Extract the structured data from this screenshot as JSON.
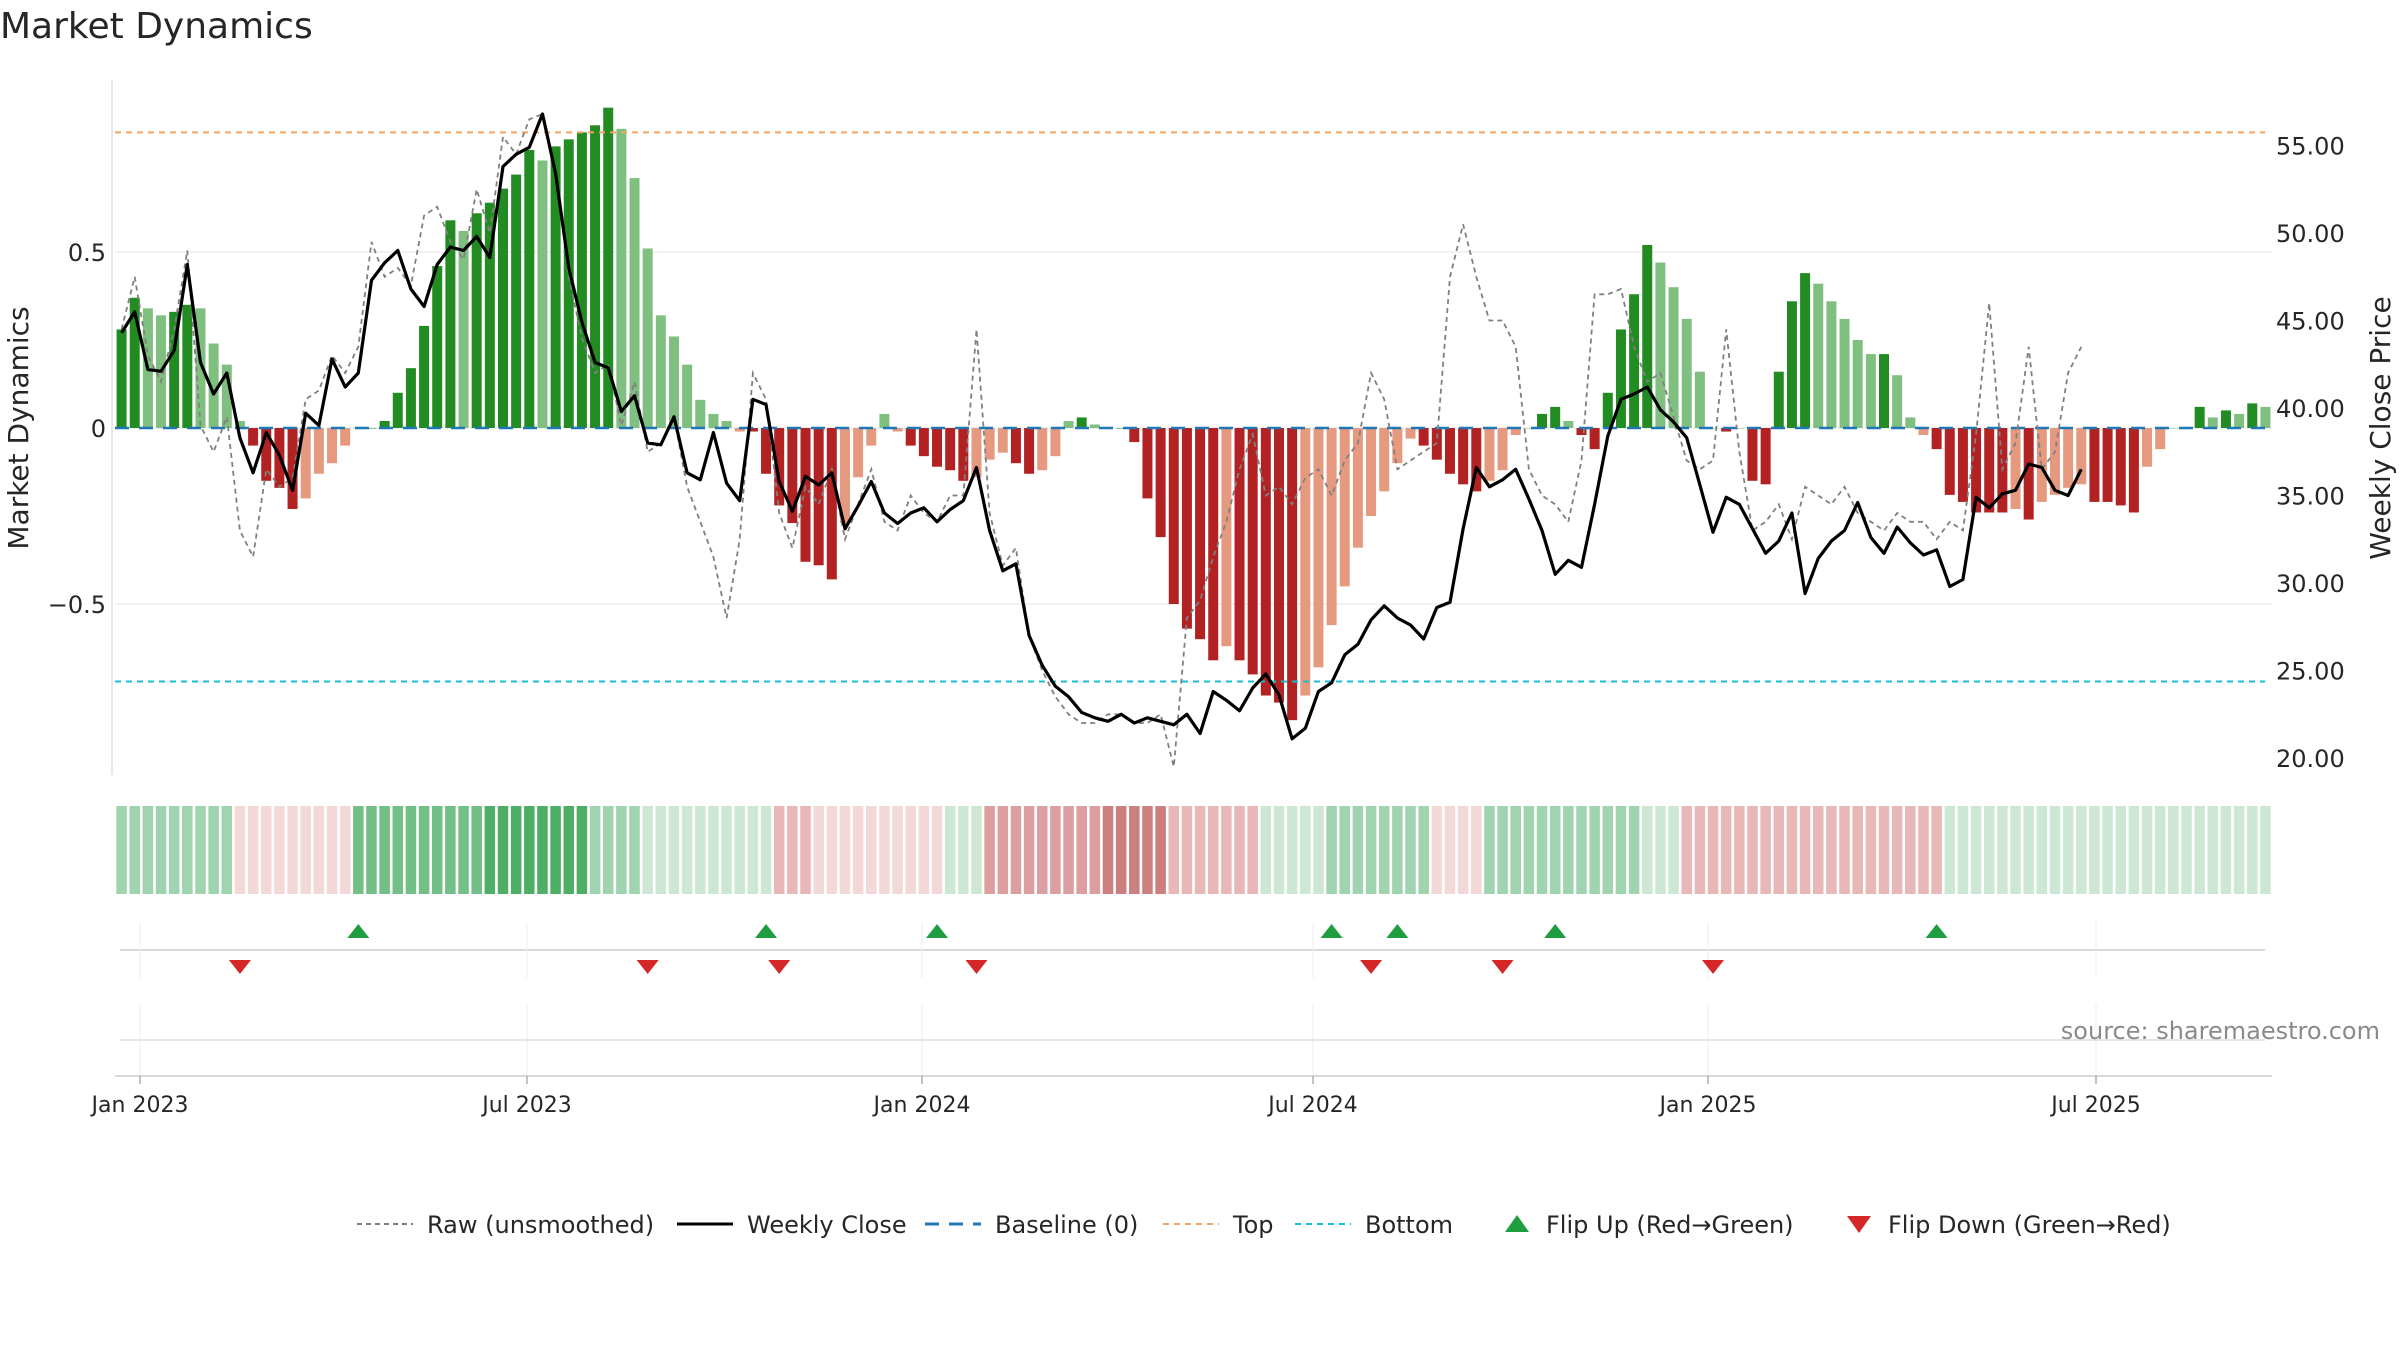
{
  "title": "Market Dynamics",
  "source": "source: sharemaestro.com",
  "chart_data": {
    "type": "bar",
    "title": "Market Dynamics",
    "ylabel_left": "Market Dynamics",
    "ylabel_right": "Weekly Close Price",
    "left_ticks": [
      0.5,
      0,
      -0.5
    ],
    "left_tick_labels": [
      "0.5",
      "0",
      "−0.5"
    ],
    "right_ticks": [
      55,
      50,
      45,
      40,
      35,
      30,
      25,
      20
    ],
    "right_tick_labels": [
      "55.00",
      "50.00",
      "45.00",
      "40.00",
      "35.00",
      "30.00",
      "25.00",
      "20.00"
    ],
    "x_ticks": [
      "Jan 2023",
      "Jul 2023",
      "Jan 2024",
      "Jul 2024",
      "Jan 2025",
      "Jul 2025"
    ],
    "top_line": 0.84,
    "bottom_line": -0.72,
    "baseline": 0,
    "colors": {
      "green_strong": "#228b22",
      "green_light": "#7fbf7f",
      "red_strong": "#b22222",
      "red_light": "#e59a80",
      "close_line": "#000000",
      "raw_line": "#808080",
      "baseline": "#1f77b4",
      "top": "#f4a460",
      "bottom": "#17becf",
      "flip_up": "#1e9e3e",
      "flip_down": "#d62728"
    },
    "legend": [
      {
        "label": "Raw (unsmoothed)",
        "style": "raw"
      },
      {
        "label": "Weekly Close",
        "style": "close"
      },
      {
        "label": "Baseline (0)",
        "style": "baseline"
      },
      {
        "label": "Top",
        "style": "top"
      },
      {
        "label": "Bottom",
        "style": "bottom"
      },
      {
        "label": "Flip Up (Red→Green)",
        "style": "flipup"
      },
      {
        "label": "Flip Down (Green→Red)",
        "style": "flipdown"
      }
    ],
    "bars": [
      0.28,
      0.37,
      0.34,
      0.32,
      0.33,
      0.35,
      0.34,
      0.24,
      0.18,
      0.02,
      -0.05,
      -0.15,
      -0.17,
      -0.23,
      -0.2,
      -0.13,
      -0.1,
      -0.05,
      0.0,
      0.0,
      0.02,
      0.1,
      0.17,
      0.29,
      0.46,
      0.59,
      0.56,
      0.61,
      0.64,
      0.68,
      0.72,
      0.79,
      0.76,
      0.8,
      0.82,
      0.84,
      0.86,
      0.91,
      0.85,
      0.71,
      0.51,
      0.32,
      0.26,
      0.18,
      0.08,
      0.04,
      0.02,
      -0.01,
      -0.01,
      -0.13,
      -0.22,
      -0.27,
      -0.38,
      -0.39,
      -0.43,
      -0.27,
      -0.14,
      -0.05,
      0.04,
      -0.01,
      -0.05,
      -0.08,
      -0.11,
      -0.12,
      -0.15,
      -0.14,
      -0.09,
      -0.07,
      -0.1,
      -0.13,
      -0.12,
      -0.08,
      0.02,
      0.03,
      0.01,
      0.0,
      0.0,
      -0.04,
      -0.2,
      -0.31,
      -0.5,
      -0.57,
      -0.6,
      -0.66,
      -0.62,
      -0.66,
      -0.7,
      -0.76,
      -0.78,
      -0.83,
      -0.76,
      -0.68,
      -0.56,
      -0.45,
      -0.34,
      -0.25,
      -0.18,
      -0.1,
      -0.03,
      -0.05,
      -0.09,
      -0.13,
      -0.16,
      -0.18,
      -0.15,
      -0.12,
      -0.02,
      0.0,
      0.04,
      0.06,
      0.02,
      -0.02,
      -0.06,
      0.1,
      0.28,
      0.38,
      0.52,
      0.47,
      0.4,
      0.31,
      0.16,
      0.0,
      -0.01,
      0.0,
      -0.15,
      -0.16,
      0.16,
      0.36,
      0.44,
      0.41,
      0.36,
      0.31,
      0.25,
      0.21,
      0.21,
      0.15,
      0.03,
      -0.02,
      -0.06,
      -0.19,
      -0.21,
      -0.24,
      -0.24,
      -0.24,
      -0.23,
      -0.26,
      -0.21,
      -0.19,
      -0.17,
      -0.16,
      -0.21,
      -0.21,
      -0.22,
      -0.24,
      -0.11,
      -0.06,
      0.0,
      0.0,
      0.06,
      0.03,
      0.05,
      0.04,
      0.07,
      0.06
    ],
    "close": [
      44.3,
      45.5,
      42.2,
      42.1,
      43.3,
      48.2,
      42.6,
      40.8,
      42.0,
      38.3,
      36.3,
      38.6,
      37.3,
      35.3,
      39.7,
      39.0,
      42.8,
      41.2,
      42.0,
      47.3,
      48.3,
      49.0,
      46.8,
      45.8,
      48.2,
      49.2,
      49.0,
      49.8,
      48.6,
      53.8,
      54.5,
      54.9,
      56.8,
      53.4,
      48.0,
      44.9,
      42.6,
      42.3,
      39.8,
      40.7,
      38.0,
      37.9,
      39.5,
      36.3,
      35.9,
      38.6,
      35.7,
      34.7,
      40.5,
      40.2,
      35.8,
      34.1,
      36.1,
      35.6,
      36.3,
      33.1,
      34.4,
      35.8,
      34.0,
      33.4,
      34.0,
      34.3,
      33.5,
      34.2,
      34.7,
      36.6,
      33.0,
      30.7,
      31.1,
      27.0,
      25.3,
      24.1,
      23.5,
      22.6,
      22.3,
      22.1,
      22.5,
      22.0,
      22.3,
      22.1,
      21.9,
      22.5,
      21.4,
      23.8,
      23.3,
      22.7,
      24.0,
      24.8,
      23.6,
      21.1,
      21.7,
      23.8,
      24.3,
      25.9,
      26.5,
      27.9,
      28.7,
      28.0,
      27.6,
      26.8,
      28.6,
      28.9,
      33.1,
      36.6,
      35.5,
      35.9,
      36.5,
      34.8,
      33.0,
      30.5,
      31.3,
      30.9,
      34.5,
      38.4,
      40.5,
      40.8,
      41.2,
      39.9,
      39.2,
      38.3,
      35.6,
      32.9,
      34.9,
      34.5,
      33.1,
      31.7,
      32.4,
      34.0,
      29.4,
      31.4,
      32.4,
      33.0,
      34.6,
      32.6,
      31.7,
      33.2,
      32.3,
      31.6,
      31.9,
      29.8,
      30.2,
      34.9,
      34.3,
      35.1,
      35.3,
      36.8,
      36.6,
      35.3,
      35.0,
      36.5
    ],
    "raw": [
      44.5,
      47.5,
      43.0,
      41.5,
      44.5,
      49.0,
      39.0,
      37.5,
      39.5,
      33.0,
      31.5,
      36.5,
      35.5,
      36.0,
      40.5,
      41.0,
      43.0,
      42.0,
      43.5,
      49.5,
      47.5,
      48.0,
      47.0,
      51.0,
      51.5,
      49.5,
      48.5,
      52.5,
      50.0,
      55.5,
      54.5,
      56.5,
      56.8,
      53.5,
      47.5,
      44.0,
      42.0,
      42.5,
      39.0,
      41.5,
      37.5,
      38.0,
      39.5,
      35.5,
      33.5,
      31.5,
      28.0,
      32.5,
      42.0,
      40.5,
      34.0,
      32.0,
      35.5,
      34.5,
      36.5,
      32.5,
      34.5,
      36.5,
      33.5,
      33.0,
      35.0,
      34.0,
      33.5,
      35.0,
      35.0,
      44.5,
      34.0,
      31.0,
      32.0,
      27.0,
      25.0,
      23.5,
      22.5,
      22.0,
      22.0,
      22.5,
      22.5,
      22.0,
      22.0,
      22.5,
      19.5,
      28.0,
      29.0,
      31.5,
      33.5,
      36.5,
      38.5,
      35.0,
      35.5,
      34.5,
      36.0,
      36.5,
      35.0,
      37.0,
      38.0,
      42.0,
      40.5,
      36.5,
      37.0,
      37.5,
      38.0,
      47.5,
      50.5,
      47.5,
      45.0,
      45.0,
      43.5,
      36.5,
      35.0,
      34.5,
      33.5,
      37.0,
      46.5,
      46.5,
      46.8,
      43.5,
      41.5,
      42.0,
      39.5,
      37.0,
      36.5,
      37.0,
      44.5,
      37.5,
      33.0,
      33.5,
      34.5,
      32.5,
      35.5,
      35.0,
      34.5,
      35.5,
      34.0,
      33.5,
      33.0,
      34.0,
      33.5,
      33.5,
      32.5,
      33.5,
      33.0,
      38.5,
      46.0,
      36.5,
      38.0,
      43.5,
      36.5,
      37.5,
      42.0,
      43.5
    ],
    "heat_bands": [
      {
        "start": 0,
        "end": 9,
        "tone": "green2"
      },
      {
        "start": 9,
        "end": 18,
        "tone": "red1"
      },
      {
        "start": 18,
        "end": 28,
        "tone": "green3"
      },
      {
        "start": 28,
        "end": 36,
        "tone": "green4"
      },
      {
        "start": 36,
        "end": 40,
        "tone": "green2"
      },
      {
        "start": 40,
        "end": 40,
        "tone": "green1"
      },
      {
        "start": 40,
        "end": 50,
        "tone": "green1"
      },
      {
        "start": 50,
        "end": 53,
        "tone": "red2"
      },
      {
        "start": 53,
        "end": 60,
        "tone": "red1"
      },
      {
        "start": 60,
        "end": 63,
        "tone": "red1"
      },
      {
        "start": 63,
        "end": 66,
        "tone": "green1"
      },
      {
        "start": 66,
        "end": 75,
        "tone": "red3"
      },
      {
        "start": 75,
        "end": 80,
        "tone": "red4"
      },
      {
        "start": 80,
        "end": 87,
        "tone": "red2"
      },
      {
        "start": 87,
        "end": 90,
        "tone": "green1"
      },
      {
        "start": 90,
        "end": 92,
        "tone": "green1"
      },
      {
        "start": 92,
        "end": 100,
        "tone": "green2"
      },
      {
        "start": 100,
        "end": 104,
        "tone": "red1"
      },
      {
        "start": 104,
        "end": 116,
        "tone": "green2"
      },
      {
        "start": 116,
        "end": 119,
        "tone": "green1"
      },
      {
        "start": 119,
        "end": 139,
        "tone": "red2"
      },
      {
        "start": 139,
        "end": 145,
        "tone": "green1"
      }
    ],
    "flip_up_idx": [
      18,
      49,
      62,
      92,
      97,
      109,
      138
    ],
    "flip_down_idx": [
      9,
      40,
      50,
      65,
      95,
      105,
      121
    ]
  }
}
